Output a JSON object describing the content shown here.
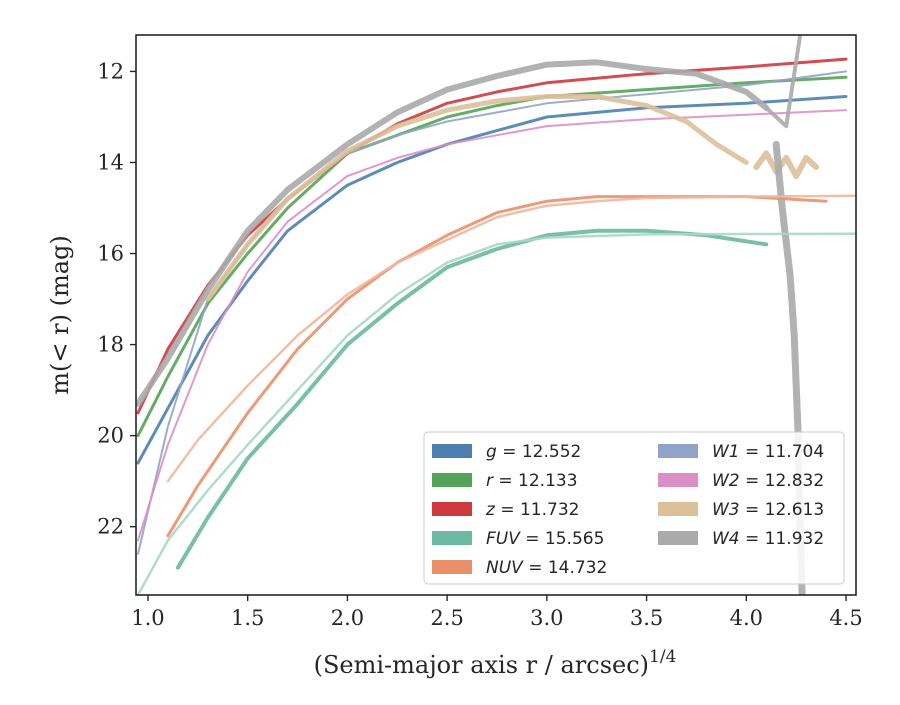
{
  "chart_data": {
    "type": "line",
    "title": "",
    "xlabel": "(Semi-major axis r / arcsec)",
    "xlabel_superscript": "1/4",
    "ylabel": "m(< r) (mag)",
    "xlim": [
      0.94,
      4.55
    ],
    "ylim": [
      23.5,
      11.2
    ],
    "y_inverted": true,
    "x_ticks": [
      "1.0",
      "1.5",
      "2.0",
      "2.5",
      "3.0",
      "3.5",
      "4.0",
      "4.5"
    ],
    "y_ticks": [
      "12",
      "14",
      "16",
      "18",
      "20",
      "22"
    ],
    "grid": false,
    "legend_position": "lower-right",
    "legend": [
      {
        "name": "g",
        "value": "12.552",
        "color": "#4c7fb0"
      },
      {
        "name": "r",
        "value": "12.133",
        "color": "#55a357"
      },
      {
        "name": "z",
        "value": "11.732",
        "color": "#cc3a3d"
      },
      {
        "name": "FUV",
        "value": "15.565",
        "color": "#6cb8a0"
      },
      {
        "name": "NUV",
        "value": "14.732",
        "color": "#e9906b"
      },
      {
        "name": "W1",
        "value": "11.704",
        "color": "#91a3c8"
      },
      {
        "name": "W2",
        "value": "12.832",
        "color": "#dc8fc6"
      },
      {
        "name": "W3",
        "value": "12.613",
        "color": "#dcc09a"
      },
      {
        "name": "W4",
        "value": "11.932",
        "color": "#aaaaaa"
      }
    ],
    "series": [
      {
        "name": "g",
        "color": "#4c7fb0",
        "width": 3,
        "x": [
          0.95,
          1.1,
          1.3,
          1.5,
          1.7,
          2.0,
          2.25,
          2.5,
          2.75,
          3.0,
          3.5,
          4.0,
          4.5
        ],
        "y": [
          20.6,
          19.4,
          17.8,
          16.6,
          15.5,
          14.5,
          14.0,
          13.6,
          13.3,
          13.0,
          12.8,
          12.7,
          12.55
        ]
      },
      {
        "name": "r",
        "color": "#55a357",
        "width": 3,
        "x": [
          0.95,
          1.1,
          1.3,
          1.5,
          1.7,
          2.0,
          2.25,
          2.5,
          2.75,
          3.0,
          3.5,
          4.0,
          4.5
        ],
        "y": [
          20.0,
          18.7,
          17.1,
          16.0,
          15.0,
          13.8,
          13.4,
          13.0,
          12.75,
          12.55,
          12.4,
          12.25,
          12.13
        ]
      },
      {
        "name": "z",
        "color": "#cc3a3d",
        "width": 3,
        "x": [
          0.95,
          1.1,
          1.3,
          1.5,
          1.7,
          2.0,
          2.25,
          2.5,
          2.75,
          3.0,
          3.5,
          4.0,
          4.5
        ],
        "y": [
          19.5,
          18.1,
          16.7,
          15.6,
          14.8,
          13.8,
          13.15,
          12.7,
          12.45,
          12.25,
          12.05,
          11.9,
          11.73
        ]
      },
      {
        "name": "W1",
        "color": "#91a3c8",
        "width": 2,
        "x": [
          0.95,
          1.1,
          1.3,
          1.5,
          1.7,
          2.0,
          2.25,
          2.5,
          2.75,
          3.0,
          3.5,
          4.0,
          4.5
        ],
        "y": [
          22.6,
          19.8,
          17.0,
          15.8,
          14.8,
          13.8,
          13.4,
          13.1,
          12.9,
          12.7,
          12.5,
          12.3,
          12.0
        ]
      },
      {
        "name": "W2",
        "color": "#dc8fc6",
        "width": 2,
        "x": [
          0.95,
          1.1,
          1.3,
          1.5,
          1.7,
          2.0,
          2.25,
          2.5,
          2.75,
          3.0,
          3.5,
          4.0,
          4.5
        ],
        "y": [
          22.3,
          20.2,
          18.0,
          16.4,
          15.3,
          14.3,
          13.9,
          13.6,
          13.4,
          13.2,
          13.05,
          12.95,
          12.85
        ]
      },
      {
        "name": "W3",
        "color": "#dcc09a",
        "width": 5,
        "x": [
          1.3,
          1.5,
          1.7,
          2.0,
          2.25,
          2.5,
          2.75,
          3.0,
          3.25,
          3.5,
          3.7,
          3.85,
          4.0
        ],
        "y": [
          17.0,
          15.8,
          14.8,
          13.75,
          13.2,
          12.85,
          12.65,
          12.55,
          12.55,
          12.75,
          13.1,
          13.6,
          14.0
        ]
      },
      {
        "name": "W3-tail",
        "color": "#dcc09a",
        "width": 6,
        "x": [
          4.05,
          4.1,
          4.15,
          4.2,
          4.25,
          4.3,
          4.35
        ],
        "y": [
          14.1,
          13.8,
          14.2,
          13.9,
          14.3,
          13.9,
          14.1
        ]
      },
      {
        "name": "W4",
        "color": "#aaaaaa",
        "width": 6,
        "x": [
          0.95,
          1.1,
          1.3,
          1.5,
          1.7,
          2.0,
          2.25,
          2.5,
          2.75,
          3.0,
          3.25,
          3.5,
          3.75,
          4.0,
          4.1
        ],
        "y": [
          19.3,
          18.3,
          16.8,
          15.5,
          14.6,
          13.6,
          12.9,
          12.4,
          12.1,
          11.85,
          11.8,
          11.95,
          12.05,
          12.45,
          12.8
        ]
      },
      {
        "name": "W4-upper",
        "color": "#aaaaaa",
        "width": 4,
        "x": [
          4.1,
          4.2,
          4.27
        ],
        "y": [
          12.8,
          13.2,
          11.2
        ]
      },
      {
        "name": "W4-column",
        "color": "#aaaaaa",
        "width": 7,
        "x": [
          4.15,
          4.18,
          4.22,
          4.24,
          4.26,
          4.27,
          4.28
        ],
        "y": [
          13.6,
          15.0,
          16.5,
          17.8,
          20.0,
          22.0,
          23.5
        ]
      },
      {
        "name": "NUV",
        "color": "#e9906b",
        "width": 3,
        "x": [
          1.1,
          1.25,
          1.5,
          1.75,
          2.0,
          2.25,
          2.5,
          2.75,
          3.0,
          3.25,
          3.5,
          4.0,
          4.4
        ],
        "y": [
          22.2,
          21.1,
          19.5,
          18.1,
          17.0,
          16.2,
          15.6,
          15.1,
          14.85,
          14.75,
          14.75,
          14.75,
          14.85
        ]
      },
      {
        "name": "NUV-model",
        "color": "#f0b79c",
        "width": 2.5,
        "x": [
          1.1,
          1.25,
          1.5,
          1.75,
          2.0,
          2.25,
          2.5,
          2.75,
          3.0,
          3.25,
          3.5,
          4.0,
          4.55
        ],
        "y": [
          21.0,
          20.1,
          18.9,
          17.8,
          16.9,
          16.2,
          15.7,
          15.2,
          14.95,
          14.85,
          14.78,
          14.75,
          14.73
        ]
      },
      {
        "name": "FUV",
        "color": "#6cb8a0",
        "width": 4,
        "x": [
          1.15,
          1.3,
          1.5,
          1.75,
          2.0,
          2.25,
          2.5,
          2.75,
          3.0,
          3.25,
          3.5,
          3.8,
          4.1
        ],
        "y": [
          22.9,
          21.8,
          20.5,
          19.3,
          18.0,
          17.1,
          16.3,
          15.9,
          15.6,
          15.5,
          15.5,
          15.6,
          15.8
        ]
      },
      {
        "name": "FUV-model",
        "color": "#a8d7c8",
        "width": 2.5,
        "x": [
          0.95,
          1.1,
          1.3,
          1.5,
          1.75,
          2.0,
          2.25,
          2.5,
          2.75,
          3.0,
          3.5,
          4.0,
          4.55
        ],
        "y": [
          23.5,
          22.3,
          21.2,
          20.2,
          19.0,
          17.8,
          16.9,
          16.2,
          15.8,
          15.65,
          15.58,
          15.57,
          15.565
        ]
      }
    ]
  }
}
